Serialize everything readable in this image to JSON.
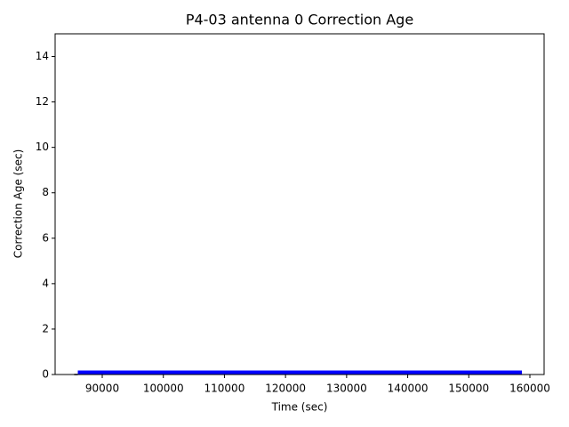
{
  "chart_data": {
    "type": "line",
    "title": "P4-03 antenna 0 Correction Age",
    "x_label": "Time (sec)",
    "y_label": "Correction Age (sec)",
    "series": [
      {
        "color": "#000000",
        "x": [
          85400,
          86000
        ],
        "values": [
          0,
          0
        ]
      },
      {
        "color": "#0000ff",
        "x": [
          86000,
          158700
        ],
        "values": [
          0.1,
          0.1
        ]
      }
    ],
    "xlim": [
      82285,
      162330
    ],
    "xticks": [
      90000,
      100000,
      110000,
      120000,
      130000,
      140000,
      150000,
      160000
    ],
    "ylim": [
      0,
      15
    ],
    "yticks": [
      0,
      2,
      4,
      6,
      8,
      10,
      12,
      14
    ],
    "grid": false
  }
}
